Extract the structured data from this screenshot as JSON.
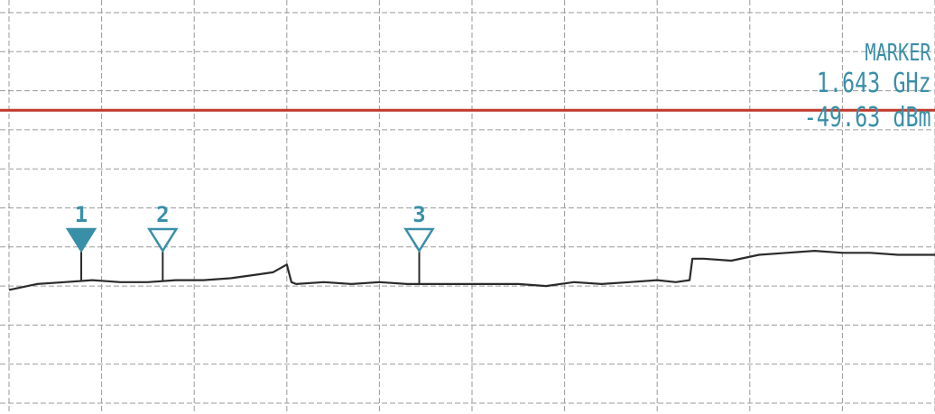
{
  "readout": {
    "header": "MARKER",
    "frequency": "1.643 GHz",
    "level": "-49.63 dBm"
  },
  "colors": {
    "grid": "#9a9a9a",
    "trace": "#2b2b2b",
    "reference_line": "#c0392b",
    "marker": "#3a8fa8"
  },
  "chart_data": {
    "type": "line",
    "title": "",
    "xlabel": "",
    "ylabel": "",
    "grid": true,
    "x_divisions": 10,
    "y_divisions": 10,
    "xlim": [
      0,
      10
    ],
    "ylim": [
      -10,
      0
    ],
    "reference_line": {
      "y": -2.5
    },
    "series": [
      {
        "x": [
          0,
          0.3,
          0.6,
          0.9,
          1.2,
          1.5,
          1.8,
          2.1,
          2.4,
          2.7,
          2.85,
          3.0,
          3.05,
          3.1,
          3.4,
          3.7,
          4.0,
          4.3,
          4.6,
          4.9,
          5.2,
          5.5,
          5.8,
          6.1,
          6.4,
          6.7,
          7.0,
          7.2,
          7.35,
          7.38,
          7.5,
          7.8,
          8.1,
          8.4,
          8.7,
          9.0,
          9.3,
          9.6,
          10.0
        ],
        "y": [
          -7.1,
          -6.95,
          -6.9,
          -6.85,
          -6.9,
          -6.9,
          -6.85,
          -6.85,
          -6.8,
          -6.7,
          -6.65,
          -6.45,
          -6.9,
          -6.95,
          -6.9,
          -6.95,
          -6.9,
          -6.95,
          -6.95,
          -6.95,
          -6.95,
          -6.95,
          -7.0,
          -6.9,
          -6.95,
          -6.9,
          -6.85,
          -6.9,
          -6.85,
          -6.3,
          -6.3,
          -6.35,
          -6.2,
          -6.15,
          -6.1,
          -6.15,
          -6.15,
          -6.2,
          -6.2
        ]
      }
    ],
    "markers": [
      {
        "label": "1",
        "x": 0.78,
        "filled": true
      },
      {
        "label": "2",
        "x": 1.66,
        "filled": false
      },
      {
        "label": "3",
        "x": 4.43,
        "filled": false
      }
    ]
  }
}
